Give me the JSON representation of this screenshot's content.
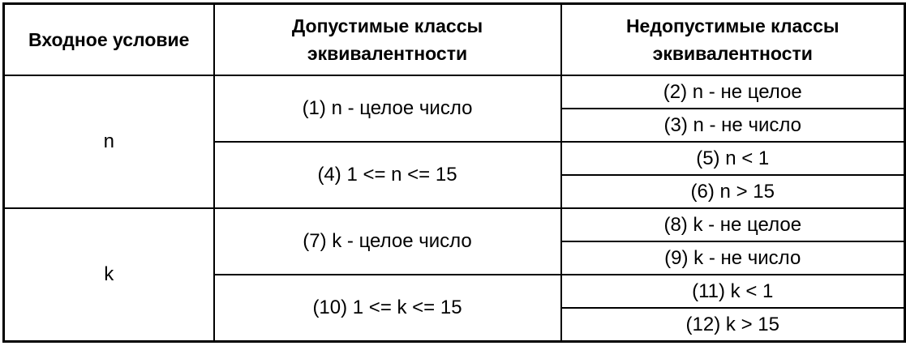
{
  "headers": {
    "input": "Входное условие",
    "valid_line1": "Допустимые классы",
    "valid_line2": "эквивалентности",
    "invalid_line1": "Недопустимые классы",
    "invalid_line2": "эквивалентности"
  },
  "groups": [
    {
      "condition": "n",
      "valid": [
        "(1) n - целое число",
        "(4) 1 <= n <= 15"
      ],
      "invalid": [
        "(2) n - не целое",
        "(3) n - не число",
        "(5)  n < 1",
        "(6) n > 15"
      ]
    },
    {
      "condition": "k",
      "valid": [
        "(7) k - целое число",
        "(10) 1 <= k <= 15"
      ],
      "invalid": [
        "(8) k - не целое",
        "(9) k - не число",
        "(11)  k < 1",
        "(12) k > 15"
      ]
    }
  ]
}
